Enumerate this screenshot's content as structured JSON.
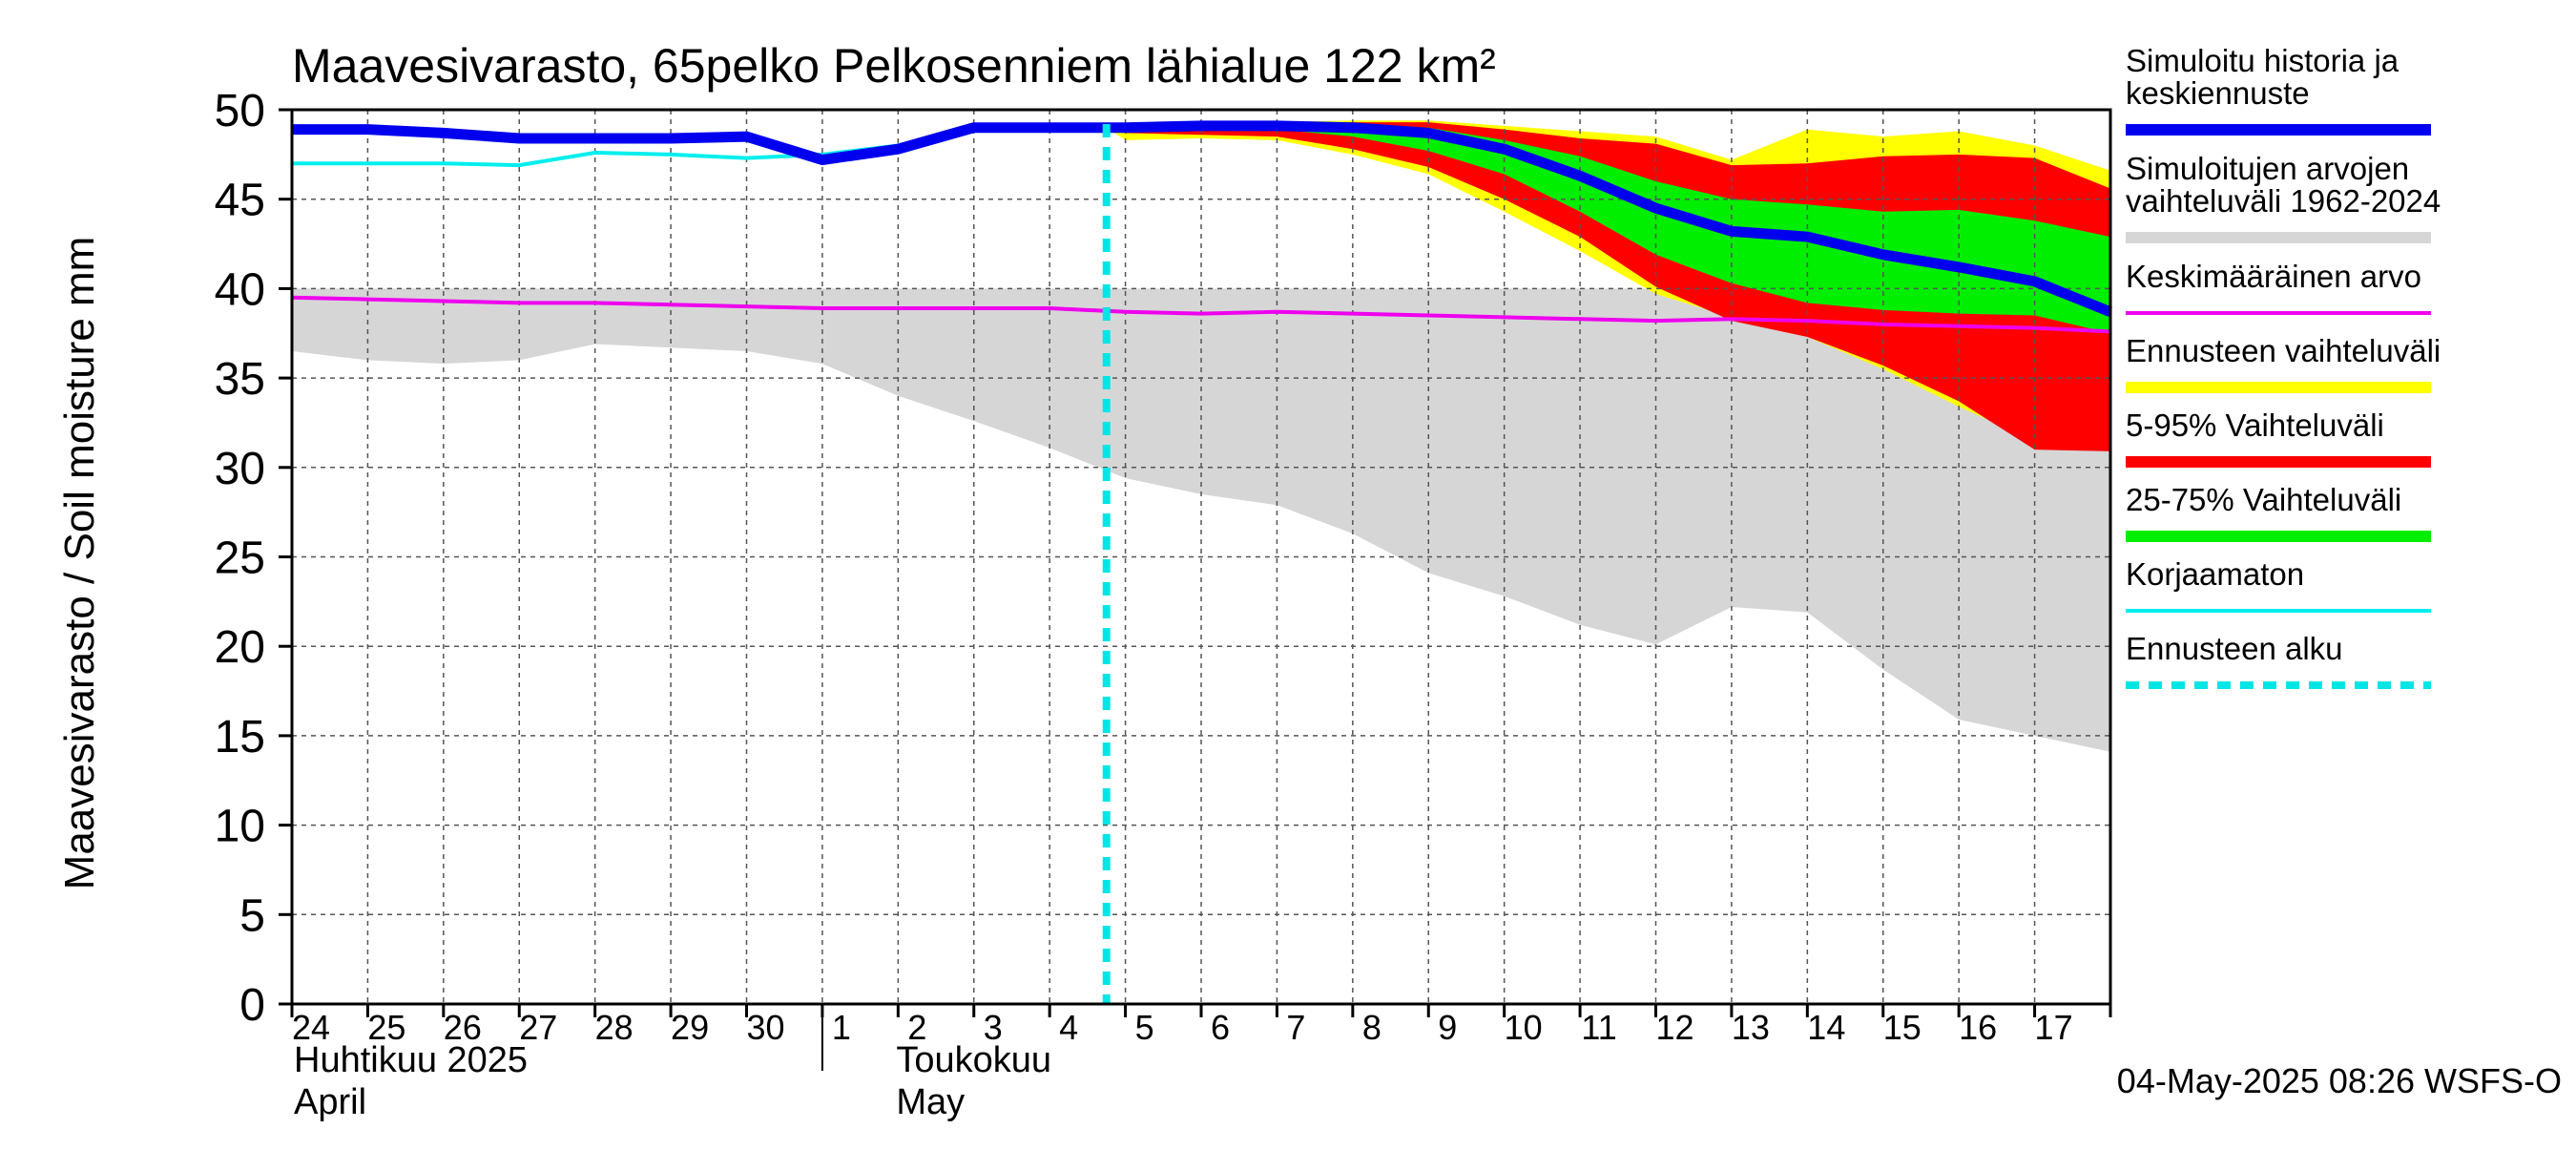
{
  "chart_data": {
    "type": "area",
    "title": "Maavesivarasto, 65pelko Pelkosenniem lähialue 122 km²",
    "ylabel": "Maavesivarasto / Soil moisture   mm",
    "ylim": [
      0,
      50
    ],
    "yticks": [
      0,
      5,
      10,
      15,
      20,
      25,
      30,
      35,
      40,
      45,
      50
    ],
    "x_start": "2025-04-24",
    "x_days": 24,
    "day_labels": [
      "24",
      "25",
      "26",
      "27",
      "28",
      "29",
      "30",
      "1",
      "2",
      "3",
      "4",
      "5",
      "6",
      "7",
      "8",
      "9",
      "10",
      "11",
      "12",
      "13",
      "14",
      "15",
      "16",
      "17"
    ],
    "month_labels": [
      {
        "fi": "Huhtikuu  2025",
        "en": "April",
        "day_index": 0
      },
      {
        "fi": "Toukokuu",
        "en": "May",
        "day_index": 8
      }
    ],
    "forecast_start_day": 10.75,
    "footer": "04-May-2025 08:26 WSFS-O",
    "colors": {
      "history": "#0000ee",
      "range_hist": "#d6d6d6",
      "mean": "#ee00ee",
      "forecast_range": "#ffff00",
      "p5_95": "#ff0000",
      "p25_75": "#00ee00",
      "uncorrected": "#00eeee",
      "forecast_start": "#00e5e5"
    },
    "legend": [
      {
        "label": "Simuloitu historia ja keskiennuste",
        "lines": [
          "Simuloitu historia ja",
          "keskiennuste"
        ],
        "color": "#0000ee",
        "style": "thick"
      },
      {
        "label": "Simuloitujen arvojen vaihteluväli 1962-2024",
        "lines": [
          "Simuloitujen arvojen",
          "vaihteluväli 1962-2024"
        ],
        "color": "#d6d6d6",
        "style": "thick"
      },
      {
        "label": "Keskimääräinen arvo",
        "lines": [
          "Keskimääräinen arvo"
        ],
        "color": "#ee00ee",
        "style": "thin"
      },
      {
        "label": "Ennusteen vaihteluväli",
        "lines": [
          "Ennusteen vaihteluväli"
        ],
        "color": "#ffff00",
        "style": "thick"
      },
      {
        "label": "5-95% Vaihteluväli",
        "lines": [
          "5-95% Vaihteluväli"
        ],
        "color": "#ff0000",
        "style": "thick"
      },
      {
        "label": "25-75% Vaihteluväli",
        "lines": [
          "25-75% Vaihteluväli"
        ],
        "color": "#00ee00",
        "style": "thick"
      },
      {
        "label": "Korjaamaton",
        "lines": [
          "Korjaamaton"
        ],
        "color": "#00eeee",
        "style": "thin"
      },
      {
        "label": "Ennusteen alku",
        "lines": [
          "Ennusteen alku"
        ],
        "color": "#00e5e5",
        "style": "dashed"
      }
    ],
    "series": {
      "hist_range": {
        "x": [
          0,
          1,
          2,
          3,
          4,
          5,
          6,
          7,
          8,
          9,
          10,
          11,
          12,
          13,
          14,
          15,
          16,
          17,
          18,
          19,
          20,
          21,
          22,
          23,
          24
        ],
        "upper": [
          40,
          40,
          40,
          40,
          40,
          40,
          40,
          40,
          40,
          40,
          40,
          40,
          40,
          40,
          40,
          40,
          40,
          40,
          40,
          40,
          40,
          40,
          40,
          40,
          40
        ],
        "lower": [
          36.5,
          36.0,
          35.8,
          36.0,
          36.9,
          36.7,
          36.5,
          35.8,
          34.0,
          32.6,
          31.1,
          29.4,
          28.5,
          27.9,
          26.3,
          24.1,
          22.8,
          21.2,
          20.1,
          22.2,
          21.9,
          18.7,
          15.9,
          15.0,
          14.1
        ]
      },
      "mean": {
        "x": [
          0,
          1,
          2,
          3,
          4,
          5,
          6,
          7,
          8,
          9,
          10,
          11,
          12,
          13,
          14,
          15,
          16,
          17,
          18,
          19,
          20,
          21,
          22,
          23,
          24
        ],
        "y": [
          39.5,
          39.4,
          39.3,
          39.2,
          39.2,
          39.1,
          39.0,
          38.9,
          38.9,
          38.9,
          38.9,
          38.7,
          38.6,
          38.7,
          38.6,
          38.5,
          38.4,
          38.3,
          38.2,
          38.3,
          38.2,
          38.0,
          37.9,
          37.8,
          37.6
        ]
      },
      "uncorrected": {
        "x": [
          0,
          1,
          2,
          3,
          4,
          5,
          6,
          7,
          8,
          9
        ],
        "y": [
          47.0,
          47.0,
          47.0,
          46.9,
          47.6,
          47.5,
          47.3,
          47.5,
          48.0,
          49.0
        ]
      },
      "history": {
        "x": [
          0,
          1,
          2,
          3,
          4,
          5,
          6,
          7,
          8,
          9,
          10,
          11,
          12,
          13,
          14,
          15,
          16,
          17,
          18,
          19,
          20,
          21,
          22,
          23,
          24
        ],
        "y": [
          48.9,
          48.9,
          48.7,
          48.4,
          48.4,
          48.4,
          48.5,
          47.2,
          47.8,
          49.0,
          49.0,
          49.0,
          49.1,
          49.1,
          49.0,
          48.7,
          47.8,
          46.3,
          44.5,
          43.2,
          42.9,
          41.9,
          41.2,
          40.4,
          38.7
        ]
      },
      "forecast": {
        "x": [
          10.75,
          11,
          12,
          13,
          14,
          15,
          16,
          17,
          18,
          19,
          20,
          21,
          22,
          23,
          24
        ],
        "yellow_upper": [
          49.0,
          49.0,
          49.2,
          49.3,
          49.4,
          49.4,
          49.1,
          48.8,
          48.5,
          47.2,
          48.9,
          48.5,
          48.8,
          48.0,
          46.6
        ],
        "red_upper": [
          49.0,
          49.0,
          49.1,
          49.2,
          49.3,
          49.3,
          48.9,
          48.4,
          48.1,
          46.9,
          47.0,
          47.4,
          47.5,
          47.3,
          45.6
        ],
        "green_upper": [
          49.0,
          49.0,
          49.0,
          49.1,
          49.2,
          49.0,
          48.3,
          47.4,
          46.0,
          45.0,
          44.7,
          44.3,
          44.4,
          43.8,
          42.9
        ],
        "green_lower": [
          49.0,
          49.0,
          48.9,
          48.9,
          48.5,
          47.7,
          46.4,
          44.3,
          41.9,
          40.3,
          39.2,
          38.8,
          38.6,
          38.5,
          37.5
        ],
        "red_lower": [
          49.0,
          48.7,
          48.6,
          48.5,
          47.8,
          46.8,
          45.0,
          42.9,
          40.1,
          38.2,
          37.3,
          35.7,
          33.7,
          31.0,
          30.9
        ],
        "yellow_lower": [
          49.0,
          48.3,
          48.4,
          48.3,
          47.5,
          46.4,
          44.3,
          42.1,
          39.7,
          38.4,
          37.3,
          35.5,
          33.4,
          31.5,
          30.9
        ]
      }
    }
  }
}
